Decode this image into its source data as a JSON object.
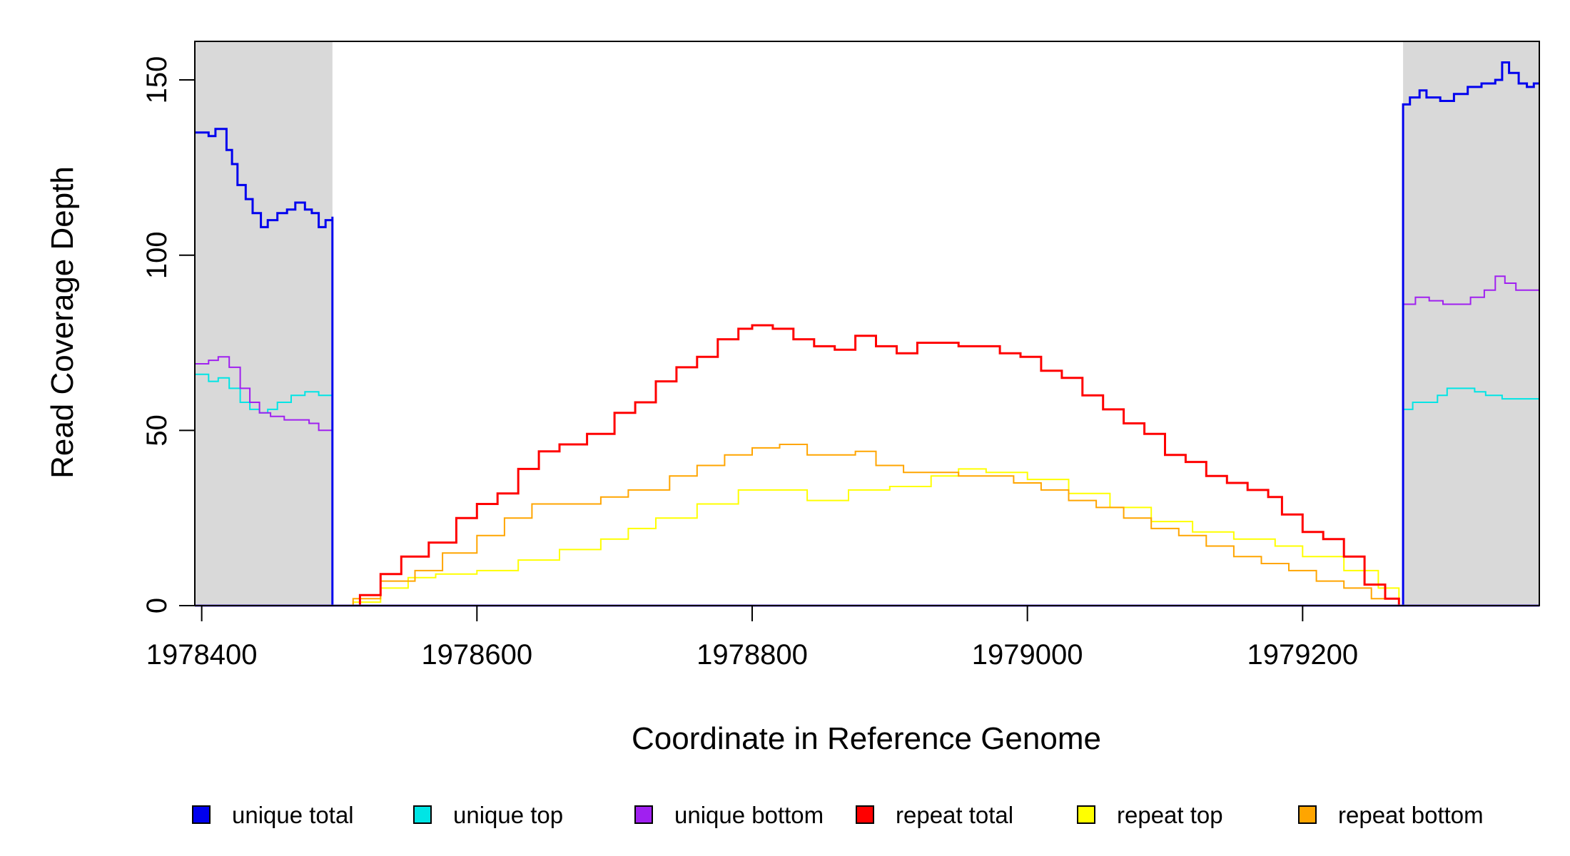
{
  "chart_data": {
    "type": "line",
    "xlabel": "Coordinate in Reference Genome",
    "ylabel": "Read Coverage Depth",
    "xlim": [
      1978395,
      1979372
    ],
    "ylim": [
      0,
      161
    ],
    "x_ticks": [
      1978400,
      1978600,
      1978800,
      1979000,
      1979200
    ],
    "y_ticks": [
      0,
      50,
      100,
      150
    ],
    "shaded_regions": [
      [
        1978395,
        1978495
      ],
      [
        1979273,
        1979372
      ]
    ],
    "legend_position": "bottom",
    "series": [
      {
        "name": "unique total",
        "color": "#0000ee",
        "width": 3,
        "points": [
          [
            1978395,
            135
          ],
          [
            1978405,
            134
          ],
          [
            1978410,
            136
          ],
          [
            1978415,
            136
          ],
          [
            1978418,
            130
          ],
          [
            1978422,
            126
          ],
          [
            1978426,
            120
          ],
          [
            1978432,
            116
          ],
          [
            1978437,
            112
          ],
          [
            1978443,
            108
          ],
          [
            1978448,
            110
          ],
          [
            1978455,
            112
          ],
          [
            1978462,
            113
          ],
          [
            1978468,
            115
          ],
          [
            1978475,
            113
          ],
          [
            1978480,
            112
          ],
          [
            1978485,
            108
          ],
          [
            1978490,
            110
          ],
          [
            1978495,
            111
          ],
          [
            1978495,
            0
          ],
          [
            1979273,
            0
          ],
          [
            1979273,
            143
          ],
          [
            1979278,
            145
          ],
          [
            1979285,
            147
          ],
          [
            1979290,
            145
          ],
          [
            1979300,
            144
          ],
          [
            1979310,
            146
          ],
          [
            1979320,
            148
          ],
          [
            1979330,
            149
          ],
          [
            1979340,
            150
          ],
          [
            1979345,
            155
          ],
          [
            1979350,
            152
          ],
          [
            1979357,
            149
          ],
          [
            1979363,
            148
          ],
          [
            1979368,
            149
          ],
          [
            1979372,
            149
          ]
        ]
      },
      {
        "name": "unique top",
        "color": "#00e5e5",
        "width": 2,
        "points": [
          [
            1978395,
            66
          ],
          [
            1978405,
            64
          ],
          [
            1978412,
            65
          ],
          [
            1978420,
            62
          ],
          [
            1978428,
            58
          ],
          [
            1978435,
            56
          ],
          [
            1978442,
            55
          ],
          [
            1978448,
            56
          ],
          [
            1978455,
            58
          ],
          [
            1978465,
            60
          ],
          [
            1978475,
            61
          ],
          [
            1978485,
            60
          ],
          [
            1978495,
            60
          ],
          [
            1978495,
            0
          ],
          [
            1979273,
            0
          ],
          [
            1979273,
            56
          ],
          [
            1979280,
            58
          ],
          [
            1979290,
            58
          ],
          [
            1979298,
            60
          ],
          [
            1979305,
            62
          ],
          [
            1979315,
            62
          ],
          [
            1979325,
            61
          ],
          [
            1979333,
            60
          ],
          [
            1979345,
            59
          ],
          [
            1979360,
            59
          ],
          [
            1979372,
            59
          ]
        ]
      },
      {
        "name": "unique bottom",
        "color": "#a020f0",
        "width": 2,
        "points": [
          [
            1978395,
            69
          ],
          [
            1978405,
            70
          ],
          [
            1978412,
            71
          ],
          [
            1978420,
            68
          ],
          [
            1978428,
            62
          ],
          [
            1978435,
            58
          ],
          [
            1978442,
            55
          ],
          [
            1978450,
            54
          ],
          [
            1978460,
            53
          ],
          [
            1978470,
            53
          ],
          [
            1978478,
            52
          ],
          [
            1978485,
            50
          ],
          [
            1978495,
            51
          ],
          [
            1978495,
            0
          ],
          [
            1979273,
            0
          ],
          [
            1979273,
            86
          ],
          [
            1979282,
            88
          ],
          [
            1979292,
            87
          ],
          [
            1979302,
            86
          ],
          [
            1979312,
            86
          ],
          [
            1979322,
            88
          ],
          [
            1979332,
            90
          ],
          [
            1979340,
            94
          ],
          [
            1979347,
            92
          ],
          [
            1979355,
            90
          ],
          [
            1979365,
            90
          ],
          [
            1979372,
            91
          ]
        ]
      },
      {
        "name": "repeat total",
        "color": "#ff0000",
        "width": 3,
        "points": [
          [
            1978495,
            0
          ],
          [
            1978505,
            0
          ],
          [
            1978515,
            3
          ],
          [
            1978530,
            9
          ],
          [
            1978545,
            14
          ],
          [
            1978565,
            18
          ],
          [
            1978585,
            25
          ],
          [
            1978600,
            29
          ],
          [
            1978615,
            32
          ],
          [
            1978630,
            39
          ],
          [
            1978645,
            44
          ],
          [
            1978660,
            46
          ],
          [
            1978680,
            49
          ],
          [
            1978700,
            55
          ],
          [
            1978715,
            58
          ],
          [
            1978730,
            64
          ],
          [
            1978745,
            68
          ],
          [
            1978760,
            71
          ],
          [
            1978775,
            76
          ],
          [
            1978790,
            79
          ],
          [
            1978800,
            80
          ],
          [
            1978815,
            79
          ],
          [
            1978830,
            76
          ],
          [
            1978845,
            74
          ],
          [
            1978860,
            73
          ],
          [
            1978875,
            77
          ],
          [
            1978890,
            74
          ],
          [
            1978905,
            72
          ],
          [
            1978920,
            75
          ],
          [
            1978935,
            75
          ],
          [
            1978950,
            74
          ],
          [
            1978965,
            74
          ],
          [
            1978980,
            72
          ],
          [
            1978995,
            71
          ],
          [
            1979010,
            67
          ],
          [
            1979025,
            65
          ],
          [
            1979040,
            60
          ],
          [
            1979055,
            56
          ],
          [
            1979070,
            52
          ],
          [
            1979085,
            49
          ],
          [
            1979100,
            43
          ],
          [
            1979115,
            41
          ],
          [
            1979130,
            37
          ],
          [
            1979145,
            35
          ],
          [
            1979160,
            33
          ],
          [
            1979175,
            31
          ],
          [
            1979185,
            26
          ],
          [
            1979200,
            21
          ],
          [
            1979215,
            19
          ],
          [
            1979230,
            14
          ],
          [
            1979245,
            6
          ],
          [
            1979260,
            2
          ],
          [
            1979270,
            0
          ]
        ]
      },
      {
        "name": "repeat top",
        "color": "#ffff00",
        "width": 2,
        "points": [
          [
            1978495,
            0
          ],
          [
            1978510,
            1
          ],
          [
            1978530,
            5
          ],
          [
            1978550,
            8
          ],
          [
            1978570,
            9
          ],
          [
            1978600,
            10
          ],
          [
            1978630,
            13
          ],
          [
            1978660,
            16
          ],
          [
            1978690,
            19
          ],
          [
            1978710,
            22
          ],
          [
            1978730,
            25
          ],
          [
            1978760,
            29
          ],
          [
            1978790,
            33
          ],
          [
            1978810,
            33
          ],
          [
            1978840,
            30
          ],
          [
            1978870,
            33
          ],
          [
            1978900,
            34
          ],
          [
            1978930,
            37
          ],
          [
            1978950,
            39
          ],
          [
            1978970,
            38
          ],
          [
            1979000,
            36
          ],
          [
            1979030,
            32
          ],
          [
            1979060,
            28
          ],
          [
            1979090,
            24
          ],
          [
            1979120,
            21
          ],
          [
            1979150,
            19
          ],
          [
            1979180,
            17
          ],
          [
            1979200,
            14
          ],
          [
            1979230,
            10
          ],
          [
            1979255,
            5
          ],
          [
            1979270,
            0
          ]
        ]
      },
      {
        "name": "repeat bottom",
        "color": "#ffa500",
        "width": 2,
        "points": [
          [
            1978495,
            0
          ],
          [
            1978510,
            2
          ],
          [
            1978530,
            7
          ],
          [
            1978555,
            10
          ],
          [
            1978575,
            15
          ],
          [
            1978600,
            20
          ],
          [
            1978620,
            25
          ],
          [
            1978640,
            29
          ],
          [
            1978660,
            29
          ],
          [
            1978690,
            31
          ],
          [
            1978710,
            33
          ],
          [
            1978740,
            37
          ],
          [
            1978760,
            40
          ],
          [
            1978780,
            43
          ],
          [
            1978800,
            45
          ],
          [
            1978820,
            46
          ],
          [
            1978840,
            43
          ],
          [
            1978860,
            43
          ],
          [
            1978875,
            44
          ],
          [
            1978890,
            40
          ],
          [
            1978910,
            38
          ],
          [
            1978930,
            38
          ],
          [
            1978950,
            37
          ],
          [
            1978970,
            37
          ],
          [
            1978990,
            35
          ],
          [
            1979010,
            33
          ],
          [
            1979030,
            30
          ],
          [
            1979050,
            28
          ],
          [
            1979070,
            25
          ],
          [
            1979090,
            22
          ],
          [
            1979110,
            20
          ],
          [
            1979130,
            17
          ],
          [
            1979150,
            14
          ],
          [
            1979170,
            12
          ],
          [
            1979190,
            10
          ],
          [
            1979210,
            7
          ],
          [
            1979230,
            5
          ],
          [
            1979250,
            2
          ],
          [
            1979270,
            0
          ]
        ]
      }
    ]
  }
}
